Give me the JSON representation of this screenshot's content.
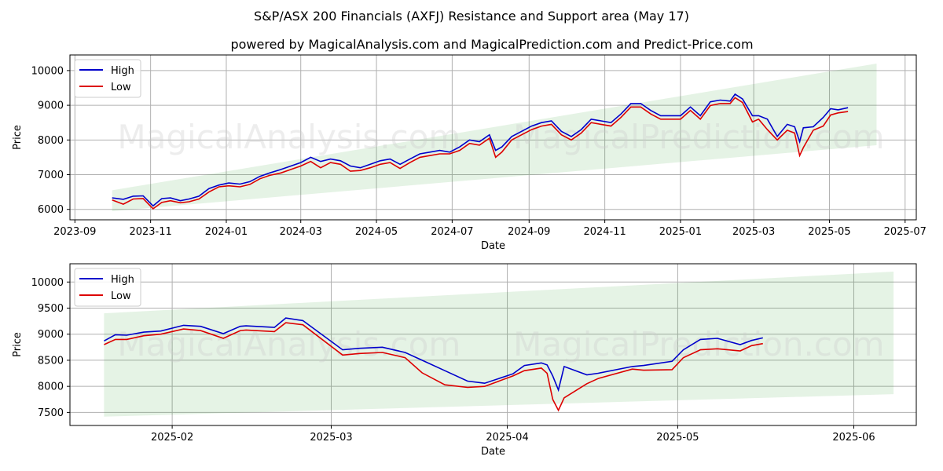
{
  "chart_data": [
    {
      "type": "line",
      "title": "S&P/ASX 200 Financials (AXFJ) Resistance and Support area (May 17)",
      "subtitle": "powered by MagicalAnalysis.com and MagicalPrediction.com and Predict-Price.com",
      "xlabel": "Date",
      "ylabel": "Price",
      "xlim": [
        "2023-08-28",
        "2025-07-10"
      ],
      "ylim": [
        5700,
        10450
      ],
      "x_ticks": [
        "2023-09",
        "2023-11",
        "2024-01",
        "2024-03",
        "2024-05",
        "2024-07",
        "2024-09",
        "2024-11",
        "2025-01",
        "2025-03",
        "2025-05",
        "2025-07"
      ],
      "y_ticks": [
        6000,
        7000,
        8000,
        9000,
        10000
      ],
      "grid": true,
      "legend": {
        "position": "top-left",
        "entries": [
          "High",
          "Low"
        ]
      },
      "band": {
        "x": [
          "2023-10-01",
          "2025-06-08"
        ],
        "upper": [
          6550,
          10200
        ],
        "lower": [
          5950,
          7850
        ],
        "color": "#2ca02c"
      },
      "x": [
        "2023-10-01",
        "2023-10-10",
        "2023-10-18",
        "2023-10-26",
        "2023-11-03",
        "2023-11-10",
        "2023-11-17",
        "2023-11-25",
        "2023-12-02",
        "2023-12-10",
        "2023-12-18",
        "2023-12-26",
        "2024-01-03",
        "2024-01-12",
        "2024-01-20",
        "2024-01-28",
        "2024-02-05",
        "2024-02-14",
        "2024-02-22",
        "2024-03-01",
        "2024-03-09",
        "2024-03-17",
        "2024-03-25",
        "2024-04-02",
        "2024-04-10",
        "2024-04-18",
        "2024-04-26",
        "2024-05-04",
        "2024-05-12",
        "2024-05-20",
        "2024-05-28",
        "2024-06-05",
        "2024-06-13",
        "2024-06-21",
        "2024-06-29",
        "2024-07-07",
        "2024-07-15",
        "2024-07-23",
        "2024-07-31",
        "2024-08-05",
        "2024-08-10",
        "2024-08-18",
        "2024-08-26",
        "2024-09-03",
        "2024-09-11",
        "2024-09-19",
        "2024-09-27",
        "2024-10-05",
        "2024-10-13",
        "2024-10-21",
        "2024-10-29",
        "2024-11-06",
        "2024-11-14",
        "2024-11-22",
        "2024-11-30",
        "2024-12-08",
        "2024-12-16",
        "2024-12-24",
        "2025-01-01",
        "2025-01-09",
        "2025-01-17",
        "2025-01-25",
        "2025-02-02",
        "2025-02-10",
        "2025-02-14",
        "2025-02-20",
        "2025-02-28",
        "2025-03-05",
        "2025-03-12",
        "2025-03-20",
        "2025-03-28",
        "2025-04-03",
        "2025-04-07",
        "2025-04-10",
        "2025-04-18",
        "2025-04-26",
        "2025-05-02",
        "2025-05-08",
        "2025-05-16"
      ],
      "series": [
        {
          "name": "High",
          "color": "#0000cc",
          "values": [
            6330,
            6290,
            6380,
            6390,
            6100,
            6310,
            6330,
            6250,
            6300,
            6380,
            6600,
            6700,
            6760,
            6730,
            6800,
            6950,
            7050,
            7150,
            7250,
            7350,
            7500,
            7380,
            7450,
            7400,
            7250,
            7200,
            7300,
            7400,
            7450,
            7300,
            7450,
            7600,
            7650,
            7700,
            7650,
            7800,
            8000,
            7950,
            8150,
            7700,
            7800,
            8100,
            8250,
            8400,
            8500,
            8550,
            8250,
            8100,
            8300,
            8600,
            8550,
            8500,
            8750,
            9050,
            9050,
            8850,
            8700,
            8700,
            8700,
            8950,
            8700,
            9100,
            9150,
            9120,
            9320,
            9180,
            8700,
            8700,
            8600,
            8100,
            8450,
            8380,
            7950,
            8350,
            8380,
            8650,
            8900,
            8870,
            8930
          ]
        },
        {
          "name": "Low",
          "color": "#dd0000",
          "values": [
            6270,
            6150,
            6300,
            6310,
            6020,
            6200,
            6250,
            6190,
            6220,
            6300,
            6500,
            6650,
            6680,
            6650,
            6720,
            6880,
            6980,
            7050,
            7150,
            7250,
            7380,
            7200,
            7350,
            7300,
            7100,
            7120,
            7200,
            7300,
            7350,
            7180,
            7350,
            7500,
            7550,
            7600,
            7600,
            7700,
            7900,
            7850,
            8050,
            7500,
            7650,
            8000,
            8150,
            8300,
            8400,
            8450,
            8150,
            8000,
            8200,
            8500,
            8450,
            8400,
            8650,
            8950,
            8950,
            8750,
            8600,
            8600,
            8600,
            8850,
            8600,
            8990,
            9050,
            9050,
            9220,
            9080,
            8520,
            8600,
            8300,
            8000,
            8280,
            8200,
            7550,
            7780,
            8280,
            8400,
            8720,
            8780,
            8820
          ]
        }
      ]
    },
    {
      "type": "line",
      "xlabel": "Date",
      "ylabel": "Price",
      "xlim": [
        "2025-01-14",
        "2025-06-12"
      ],
      "ylim": [
        7250,
        10350
      ],
      "x_ticks": [
        "2025-02",
        "2025-03",
        "2025-04",
        "2025-05",
        "2025-06"
      ],
      "y_ticks": [
        7500,
        8000,
        8500,
        9000,
        9500,
        10000
      ],
      "grid": true,
      "legend": {
        "position": "top-left",
        "entries": [
          "High",
          "Low"
        ]
      },
      "band": {
        "x": [
          "2025-01-20",
          "2025-06-08"
        ],
        "upper": [
          9400,
          10200
        ],
        "lower": [
          7420,
          7850
        ],
        "color": "#2ca02c"
      },
      "x": [
        "2025-01-20",
        "2025-01-22",
        "2025-01-24",
        "2025-01-27",
        "2025-01-30",
        "2025-02-03",
        "2025-02-06",
        "2025-02-10",
        "2025-02-13",
        "2025-02-14",
        "2025-02-19",
        "2025-02-21",
        "2025-02-24",
        "2025-03-03",
        "2025-03-06",
        "2025-03-10",
        "2025-03-14",
        "2025-03-17",
        "2025-03-21",
        "2025-03-25",
        "2025-03-28",
        "2025-04-02",
        "2025-04-04",
        "2025-04-07",
        "2025-04-08",
        "2025-04-09",
        "2025-04-10",
        "2025-04-11",
        "2025-04-15",
        "2025-04-17",
        "2025-04-23",
        "2025-04-25",
        "2025-04-30",
        "2025-05-02",
        "2025-05-05",
        "2025-05-08",
        "2025-05-12",
        "2025-05-14",
        "2025-05-16"
      ],
      "series": [
        {
          "name": "High",
          "color": "#0000cc",
          "values": [
            8870,
            8990,
            8980,
            9040,
            9060,
            9170,
            9150,
            9010,
            9150,
            9160,
            9130,
            9310,
            9260,
            8700,
            8730,
            8750,
            8650,
            8500,
            8300,
            8100,
            8060,
            8240,
            8400,
            8450,
            8410,
            8200,
            7930,
            8380,
            8220,
            8250,
            8380,
            8400,
            8480,
            8700,
            8900,
            8920,
            8800,
            8880,
            8930
          ]
        },
        {
          "name": "Low",
          "color": "#dd0000",
          "values": [
            8800,
            8900,
            8900,
            8970,
            9000,
            9100,
            9070,
            8920,
            9070,
            9080,
            9050,
            9220,
            9180,
            8600,
            8630,
            8650,
            8550,
            8260,
            8030,
            7980,
            8000,
            8200,
            8300,
            8350,
            8250,
            7750,
            7540,
            7780,
            8050,
            8150,
            8330,
            8310,
            8320,
            8550,
            8700,
            8720,
            8680,
            8780,
            8820
          ]
        }
      ]
    }
  ],
  "watermark": "MagicalAnalysis.com     MagicalPrediction.com"
}
